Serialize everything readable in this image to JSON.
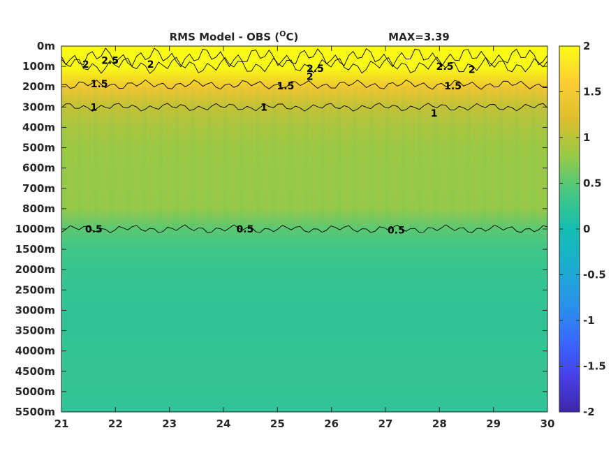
{
  "chart_data": {
    "type": "heatmap",
    "title": "RMS Model - OBS (",
    "title_unit_super": "O",
    "title_unit_tail": "C)",
    "max_label": "MAX=3.39",
    "x_ticks": [
      "21",
      "22",
      "23",
      "24",
      "25",
      "26",
      "27",
      "28",
      "29",
      "30"
    ],
    "x_range": [
      21,
      30
    ],
    "y_ticks": [
      "0m",
      "100m",
      "200m",
      "300m",
      "400m",
      "500m",
      "600m",
      "700m",
      "800m",
      "1000m",
      "1500m",
      "2000m",
      "2500m",
      "3000m",
      "3500m",
      "4000m",
      "4500m",
      "5000m",
      "5500m"
    ],
    "colorbar": {
      "ticks": [
        "2",
        "1.5",
        "1",
        "0.5",
        "0",
        "-0.5",
        "-1",
        "-1.5",
        "-2"
      ],
      "range": [
        -2,
        2
      ],
      "colormap": "parula"
    },
    "depth_profile": [
      {
        "depth": "0m",
        "value": 2.4
      },
      {
        "depth": "100m",
        "value": 2.1
      },
      {
        "depth": "200m",
        "value": 1.45
      },
      {
        "depth": "300m",
        "value": 1.05
      },
      {
        "depth": "400m",
        "value": 0.9
      },
      {
        "depth": "500m",
        "value": 0.82
      },
      {
        "depth": "600m",
        "value": 0.8
      },
      {
        "depth": "700m",
        "value": 0.8
      },
      {
        "depth": "800m",
        "value": 0.78
      },
      {
        "depth": "1000m",
        "value": 0.5
      },
      {
        "depth": "1500m",
        "value": 0.35
      },
      {
        "depth": "2000m",
        "value": 0.28
      },
      {
        "depth": "2500m",
        "value": 0.25
      },
      {
        "depth": "3000m",
        "value": 0.24
      },
      {
        "depth": "3500m",
        "value": 0.24
      },
      {
        "depth": "4000m",
        "value": 0.25
      },
      {
        "depth": "4500m",
        "value": 0.26
      },
      {
        "depth": "5000m",
        "value": 0.25
      },
      {
        "depth": "5500m",
        "value": 0.22
      }
    ],
    "contours": [
      {
        "level": "0.5",
        "labels": [
          {
            "x": 21.6,
            "depth_index": 9
          },
          {
            "x": 24.4,
            "depth_index": 9
          },
          {
            "x": 27.2,
            "depth_index": 9.05
          }
        ]
      },
      {
        "level": "1",
        "labels": [
          {
            "x": 21.6,
            "depth_index": 3
          },
          {
            "x": 24.75,
            "depth_index": 3
          },
          {
            "x": 27.9,
            "depth_index": 3.3
          }
        ]
      },
      {
        "level": "1.5",
        "labels": [
          {
            "x": 21.7,
            "depth_index": 1.85
          },
          {
            "x": 25.15,
            "depth_index": 1.95
          },
          {
            "x": 28.25,
            "depth_index": 1.95
          }
        ]
      },
      {
        "level": "2",
        "labels": [
          {
            "x": 21.45,
            "depth_index": 0.9
          },
          {
            "x": 22.65,
            "depth_index": 0.9
          },
          {
            "x": 25.6,
            "depth_index": 1.5
          },
          {
            "x": 28.6,
            "depth_index": 1.15
          }
        ]
      },
      {
        "level": "2.5",
        "labels": [
          {
            "x": 21.9,
            "depth_index": 0.7
          },
          {
            "x": 25.7,
            "depth_index": 1.1
          },
          {
            "x": 28.1,
            "depth_index": 1.0
          }
        ]
      }
    ]
  }
}
